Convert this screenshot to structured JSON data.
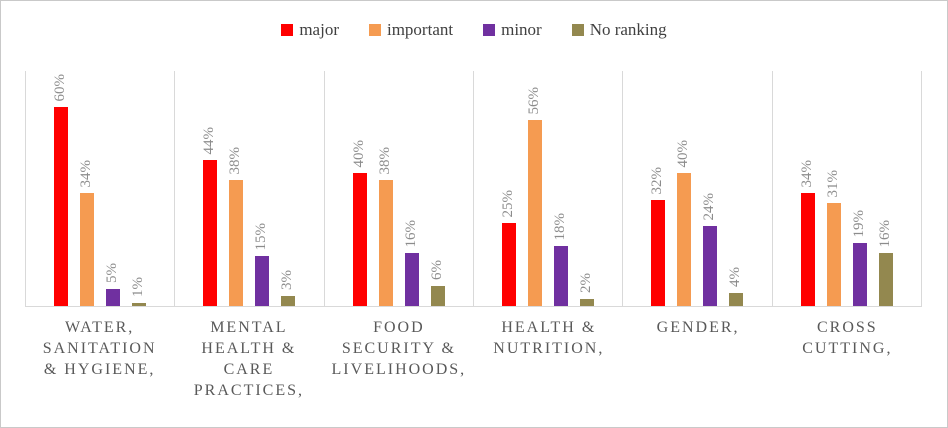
{
  "chart_data": {
    "type": "bar",
    "title": "",
    "categories": [
      "WATER, SANITATION & HYGIENE,",
      "MENTAL HEALTH & CARE PRACTICES,",
      "FOOD SECURITY & LIVELIHOODS,",
      "HEALTH & NUTRITION,",
      "GENDER,",
      "CROSS CUTTING,"
    ],
    "series": [
      {
        "name": "major",
        "color": "#FF0000",
        "values": [
          60,
          44,
          40,
          25,
          32,
          34
        ]
      },
      {
        "name": "important",
        "color": "#F59B51",
        "values": [
          34,
          38,
          38,
          56,
          40,
          31
        ]
      },
      {
        "name": "minor",
        "color": "#7030A0",
        "values": [
          5,
          15,
          16,
          18,
          24,
          19
        ]
      },
      {
        "name": "No ranking",
        "color": "#93884F",
        "values": [
          1,
          3,
          6,
          2,
          4,
          16
        ]
      }
    ],
    "value_suffix": "%",
    "ylim": [
      0,
      70
    ],
    "data_labels": "value percent, rotated 90 degrees, above bars",
    "legend_position": "top-center",
    "grid": "vertical category separator lines only",
    "colors": {
      "data_label_text": "#8C8C8C",
      "category_label_text": "#595959",
      "legend_text": "#404040",
      "gridline": "#D9D9D9",
      "chart_border": "#C9C9C9"
    }
  }
}
